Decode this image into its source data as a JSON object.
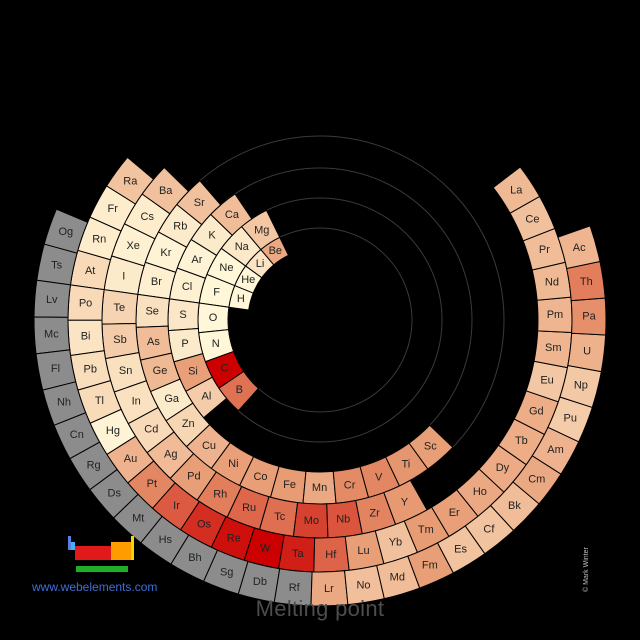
{
  "title": "Melting point",
  "website": "www.webelements.com",
  "copyright": "© Mark Winter",
  "colors": {
    "background": "#000000",
    "grey": "#8c8c8c",
    "ring_lines": "#3a3a3a",
    "scale_low": "#fff7d8",
    "scale_high": "#cc0000"
  },
  "elements": [
    {
      "symbol": "H",
      "ring": 0,
      "slot": 0,
      "level": 0.0
    },
    {
      "symbol": "He",
      "ring": 0,
      "slot": 1,
      "level": 0.0
    },
    {
      "symbol": "Li",
      "ring": 0,
      "slot": 2,
      "level": 0.1
    },
    {
      "symbol": "Be",
      "ring": 0,
      "slot": 3,
      "level": 0.4
    },
    {
      "symbol": "F",
      "ring": 1,
      "slot": 0,
      "level": 0.0
    },
    {
      "symbol": "Ne",
      "ring": 1,
      "slot": 1,
      "level": 0.0
    },
    {
      "symbol": "Na",
      "ring": 1,
      "slot": 2,
      "level": 0.07
    },
    {
      "symbol": "Mg",
      "ring": 1,
      "slot": 3,
      "level": 0.25
    },
    {
      "symbol": "O",
      "ring": 1,
      "slot": -1,
      "level": 0.0
    },
    {
      "symbol": "N",
      "ring": 1,
      "slot": -2,
      "level": 0.0
    },
    {
      "symbol": "C",
      "ring": 1,
      "slot": -3,
      "level": 1.0
    },
    {
      "symbol": "B",
      "ring": 1,
      "slot": -4,
      "level": 0.62
    },
    {
      "symbol": "Cl",
      "ring": 2,
      "slot": 0,
      "level": 0.03
    },
    {
      "symbol": "Ar",
      "ring": 2,
      "slot": 1,
      "level": 0.02
    },
    {
      "symbol": "K",
      "ring": 2,
      "slot": 2,
      "level": 0.06
    },
    {
      "symbol": "Ca",
      "ring": 2,
      "slot": 3,
      "level": 0.3
    },
    {
      "symbol": "S",
      "ring": 2,
      "slot": -1,
      "level": 0.08
    },
    {
      "symbol": "P",
      "ring": 2,
      "slot": -2,
      "level": 0.06
    },
    {
      "symbol": "Si",
      "ring": 2,
      "slot": -3,
      "level": 0.45
    },
    {
      "symbol": "Al",
      "ring": 2,
      "slot": -4,
      "level": 0.22
    },
    {
      "symbol": "Br",
      "ring": 3,
      "slot": 0,
      "level": 0.04
    },
    {
      "symbol": "Kr",
      "ring": 3,
      "slot": 1,
      "level": 0.02
    },
    {
      "symbol": "Rb",
      "ring": 3,
      "slot": 2,
      "level": 0.06
    },
    {
      "symbol": "Sr",
      "ring": 3,
      "slot": 3,
      "level": 0.28
    },
    {
      "symbol": "Se",
      "ring": 3,
      "slot": -1,
      "level": 0.12
    },
    {
      "symbol": "As",
      "ring": 3,
      "slot": -2,
      "level": 0.3
    },
    {
      "symbol": "Ge",
      "ring": 3,
      "slot": -3,
      "level": 0.32
    },
    {
      "symbol": "Ga",
      "ring": 3,
      "slot": -4,
      "level": 0.06
    },
    {
      "symbol": "Zn",
      "ring": 3,
      "slot": -5,
      "level": 0.17
    },
    {
      "symbol": "Cu",
      "ring": 3,
      "slot": -6,
      "level": 0.35
    },
    {
      "symbol": "Ni",
      "ring": 3,
      "slot": -7,
      "level": 0.45
    },
    {
      "symbol": "Co",
      "ring": 3,
      "slot": -8,
      "level": 0.46
    },
    {
      "symbol": "Fe",
      "ring": 3,
      "slot": -9,
      "level": 0.47
    },
    {
      "symbol": "Mn",
      "ring": 3,
      "slot": -10,
      "level": 0.4
    },
    {
      "symbol": "Cr",
      "ring": 3,
      "slot": -11,
      "level": 0.54
    },
    {
      "symbol": "V",
      "ring": 3,
      "slot": -12,
      "level": 0.55
    },
    {
      "symbol": "Ti",
      "ring": 3,
      "slot": -13,
      "level": 0.5
    },
    {
      "symbol": "Sc",
      "ring": 3,
      "slot": -14,
      "level": 0.46
    },
    {
      "symbol": "I",
      "ring": 4,
      "slot": 0,
      "level": 0.06
    },
    {
      "symbol": "Xe",
      "ring": 4,
      "slot": 1,
      "level": 0.03
    },
    {
      "symbol": "Cs",
      "ring": 4,
      "slot": 2,
      "level": 0.05
    },
    {
      "symbol": "Ba",
      "ring": 4,
      "slot": 3,
      "level": 0.28
    },
    {
      "symbol": "Te",
      "ring": 4,
      "slot": -1,
      "level": 0.18
    },
    {
      "symbol": "Sb",
      "ring": 4,
      "slot": -2,
      "level": 0.22
    },
    {
      "symbol": "Sn",
      "ring": 4,
      "slot": -3,
      "level": 0.12
    },
    {
      "symbol": "In",
      "ring": 4,
      "slot": -4,
      "level": 0.11
    },
    {
      "symbol": "Cd",
      "ring": 4,
      "slot": -5,
      "level": 0.15
    },
    {
      "symbol": "Ag",
      "ring": 4,
      "slot": -6,
      "level": 0.31
    },
    {
      "symbol": "Pd",
      "ring": 4,
      "slot": -7,
      "level": 0.46
    },
    {
      "symbol": "Rh",
      "ring": 4,
      "slot": -8,
      "level": 0.58
    },
    {
      "symbol": "Ru",
      "ring": 4,
      "slot": -9,
      "level": 0.66
    },
    {
      "symbol": "Tc",
      "ring": 4,
      "slot": -10,
      "level": 0.63
    },
    {
      "symbol": "Mo",
      "ring": 4,
      "slot": -11,
      "level": 0.78
    },
    {
      "symbol": "Nb",
      "ring": 4,
      "slot": -12,
      "level": 0.72
    },
    {
      "symbol": "Zr",
      "ring": 4,
      "slot": -13,
      "level": 0.56
    },
    {
      "symbol": "Y",
      "ring": 4,
      "slot": -14,
      "level": 0.48
    },
    {
      "symbol": "At",
      "ring": 5,
      "slot": 0,
      "level": 0.15
    },
    {
      "symbol": "Rn",
      "ring": 5,
      "slot": 1,
      "level": 0.05
    },
    {
      "symbol": "Fr",
      "ring": 5,
      "slot": 2,
      "level": 0.05
    },
    {
      "symbol": "Ra",
      "ring": 5,
      "slot": 3,
      "level": 0.27
    },
    {
      "symbol": "Po",
      "ring": 5,
      "slot": -1,
      "level": 0.15
    },
    {
      "symbol": "Bi",
      "ring": 5,
      "slot": -2,
      "level": 0.1
    },
    {
      "symbol": "Pb",
      "ring": 5,
      "slot": -3,
      "level": 0.13
    },
    {
      "symbol": "Tl",
      "ring": 5,
      "slot": -4,
      "level": 0.14
    },
    {
      "symbol": "Hg",
      "ring": 5,
      "slot": -5,
      "level": 0.02
    },
    {
      "symbol": "Au",
      "ring": 5,
      "slot": -6,
      "level": 0.35
    },
    {
      "symbol": "Pt",
      "ring": 5,
      "slot": -7,
      "level": 0.55
    },
    {
      "symbol": "Ir",
      "ring": 5,
      "slot": -8,
      "level": 0.7
    },
    {
      "symbol": "Os",
      "ring": 5,
      "slot": -9,
      "level": 0.85
    },
    {
      "symbol": "Re",
      "ring": 5,
      "slot": -10,
      "level": 0.95
    },
    {
      "symbol": "W",
      "ring": 5,
      "slot": -11,
      "level": 1.0
    },
    {
      "symbol": "Ta",
      "ring": 5,
      "slot": -12,
      "level": 0.9
    },
    {
      "symbol": "Hf",
      "ring": 5,
      "slot": -13,
      "level": 0.67
    },
    {
      "symbol": "Lu",
      "ring": 5,
      "slot": -14,
      "level": 0.46
    },
    {
      "symbol": "Yb",
      "ring": 5,
      "slot": -15,
      "level": 0.28
    },
    {
      "symbol": "Tm",
      "ring": 5,
      "slot": -16,
      "level": 0.47
    },
    {
      "symbol": "Er",
      "ring": 5,
      "slot": -17,
      "level": 0.45
    },
    {
      "symbol": "Ho",
      "ring": 5,
      "slot": -18,
      "level": 0.4
    },
    {
      "symbol": "Dy",
      "ring": 5,
      "slot": -19,
      "level": 0.39
    },
    {
      "symbol": "Tb",
      "ring": 5,
      "slot": -20,
      "level": 0.38
    },
    {
      "symbol": "Gd",
      "ring": 5,
      "slot": -21,
      "level": 0.38
    },
    {
      "symbol": "Eu",
      "ring": 5,
      "slot": -22,
      "level": 0.25
    },
    {
      "symbol": "Sm",
      "ring": 5,
      "slot": -23,
      "level": 0.34
    },
    {
      "symbol": "Pm",
      "ring": 5,
      "slot": -24,
      "level": 0.34
    },
    {
      "symbol": "Nd",
      "ring": 5,
      "slot": -25,
      "level": 0.32
    },
    {
      "symbol": "Pr",
      "ring": 5,
      "slot": -26,
      "level": 0.3
    },
    {
      "symbol": "Ce",
      "ring": 5,
      "slot": -27,
      "level": 0.28
    },
    {
      "symbol": "La",
      "ring": 5,
      "slot": -28,
      "level": 0.32
    },
    {
      "symbol": "Ts",
      "ring": 6,
      "slot": 0,
      "level": null
    },
    {
      "symbol": "Og",
      "ring": 6,
      "slot": 1,
      "level": null
    },
    {
      "symbol": "Lv",
      "ring": 6,
      "slot": -1,
      "level": null
    },
    {
      "symbol": "Mc",
      "ring": 6,
      "slot": -2,
      "level": null
    },
    {
      "symbol": "Fl",
      "ring": 6,
      "slot": -3,
      "level": null
    },
    {
      "symbol": "Nh",
      "ring": 6,
      "slot": -4,
      "level": null
    },
    {
      "symbol": "Cn",
      "ring": 6,
      "slot": -5,
      "level": null
    },
    {
      "symbol": "Rg",
      "ring": 6,
      "slot": -6,
      "level": null
    },
    {
      "symbol": "Ds",
      "ring": 6,
      "slot": -7,
      "level": null
    },
    {
      "symbol": "Mt",
      "ring": 6,
      "slot": -8,
      "level": null
    },
    {
      "symbol": "Hs",
      "ring": 6,
      "slot": -9,
      "level": null
    },
    {
      "symbol": "Bh",
      "ring": 6,
      "slot": -10,
      "level": null
    },
    {
      "symbol": "Sg",
      "ring": 6,
      "slot": -11,
      "level": null
    },
    {
      "symbol": "Db",
      "ring": 6,
      "slot": -12,
      "level": null
    },
    {
      "symbol": "Rf",
      "ring": 6,
      "slot": -13,
      "level": null
    },
    {
      "symbol": "Lr",
      "ring": 6,
      "slot": -14,
      "level": 0.4
    },
    {
      "symbol": "No",
      "ring": 6,
      "slot": -15,
      "level": 0.29
    },
    {
      "symbol": "Md",
      "ring": 6,
      "slot": -16,
      "level": 0.3
    },
    {
      "symbol": "Fm",
      "ring": 6,
      "slot": -17,
      "level": 0.46
    },
    {
      "symbol": "Es",
      "ring": 6,
      "slot": -18,
      "level": 0.27
    },
    {
      "symbol": "Cf",
      "ring": 6,
      "slot": -19,
      "level": 0.27
    },
    {
      "symbol": "Bk",
      "ring": 6,
      "slot": -20,
      "level": 0.3
    },
    {
      "symbol": "Cm",
      "ring": 6,
      "slot": -21,
      "level": 0.4
    },
    {
      "symbol": "Am",
      "ring": 6,
      "slot": -22,
      "level": 0.35
    },
    {
      "symbol": "Pu",
      "ring": 6,
      "slot": -23,
      "level": 0.22
    },
    {
      "symbol": "Np",
      "ring": 6,
      "slot": -24,
      "level": 0.24
    },
    {
      "symbol": "U",
      "ring": 6,
      "slot": -25,
      "level": 0.36
    },
    {
      "symbol": "Pa",
      "ring": 6,
      "slot": -26,
      "level": 0.52
    },
    {
      "symbol": "Th",
      "ring": 6,
      "slot": -27,
      "level": 0.58
    },
    {
      "symbol": "Ac",
      "ring": 6,
      "slot": -28,
      "level": 0.34
    }
  ]
}
